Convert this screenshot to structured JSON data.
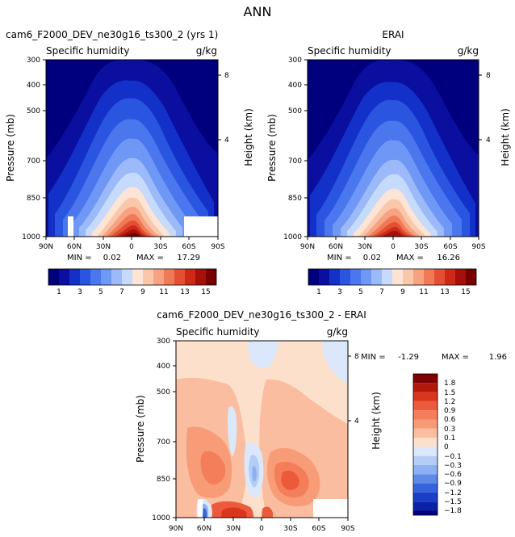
{
  "title": "ANN",
  "chart_data": [
    {
      "type": "heatmap",
      "panel": "model",
      "title": "cam6_F2000_DEV_ne30g16_ts300_2 (yrs 1)",
      "subtitle_left": "Specific humidity",
      "subtitle_right": "g/kg",
      "ylabel": "Pressure (mb)",
      "y2label": "Height (km)",
      "x_ticks": [
        "90N",
        "60N",
        "30N",
        "0",
        "30S",
        "60S",
        "90S"
      ],
      "y_ticks": [
        "300",
        "400",
        "500",
        "700",
        "850",
        "1000"
      ],
      "y_tick_values": [
        300,
        400,
        500,
        700,
        850,
        1000
      ],
      "y2_ticks": [
        "8",
        "4"
      ],
      "xlim": [
        90,
        -90
      ],
      "ylim": [
        1000,
        300
      ],
      "min_label": "MIN =",
      "min": "0.02",
      "max_label": "MAX =",
      "max": "17.29",
      "contour_levels": [
        1,
        2,
        3,
        4,
        5,
        6,
        7,
        8,
        9,
        10,
        11,
        12,
        13,
        14,
        15
      ],
      "colorbar_labels": [
        "1",
        "3",
        "5",
        "7",
        "9",
        "11",
        "13",
        "15"
      ],
      "colors": [
        "#00007f",
        "#0a0fa0",
        "#1330c8",
        "#2a55e0",
        "#4a76ee",
        "#6f98f6",
        "#9cbafa",
        "#c6dafc",
        "#fde4d4",
        "#fbc7aa",
        "#f7a280",
        "#f07a56",
        "#e44f33",
        "#cc2a17",
        "#a5100a",
        "#780000"
      ]
    },
    {
      "type": "heatmap",
      "panel": "obs",
      "title": "ERAI",
      "subtitle_left": "Specific humidity",
      "subtitle_right": "g/kg",
      "ylabel": "Pressure (mb)",
      "y2label": "Height (km)",
      "x_ticks": [
        "90N",
        "60N",
        "30N",
        "0",
        "30S",
        "60S",
        "90S"
      ],
      "y_ticks": [
        "300",
        "400",
        "500",
        "700",
        "850",
        "1000"
      ],
      "y_tick_values": [
        300,
        400,
        500,
        700,
        850,
        1000
      ],
      "y2_ticks": [
        "8",
        "4"
      ],
      "xlim": [
        90,
        -90
      ],
      "ylim": [
        1000,
        300
      ],
      "min_label": "MIN =",
      "min": "0.02",
      "max_label": "MAX =",
      "max": "16.26",
      "contour_levels": [
        1,
        2,
        3,
        4,
        5,
        6,
        7,
        8,
        9,
        10,
        11,
        12,
        13,
        14,
        15
      ],
      "colorbar_labels": [
        "1",
        "3",
        "5",
        "7",
        "9",
        "11",
        "13",
        "15"
      ],
      "colors": [
        "#00007f",
        "#0a0fa0",
        "#1330c8",
        "#2a55e0",
        "#4a76ee",
        "#6f98f6",
        "#9cbafa",
        "#c6dafc",
        "#fde4d4",
        "#fbc7aa",
        "#f7a280",
        "#f07a56",
        "#e44f33",
        "#cc2a17",
        "#a5100a",
        "#780000"
      ]
    },
    {
      "type": "heatmap",
      "panel": "difference",
      "title": "cam6_F2000_DEV_ne30g16_ts300_2 - ERAI",
      "subtitle_left": "Specific humidity",
      "subtitle_right": "g/kg",
      "ylabel": "Pressure (mb)",
      "y2label": "Height (km)",
      "x_ticks": [
        "90N",
        "60N",
        "30N",
        "0",
        "30S",
        "60S",
        "90S"
      ],
      "y_ticks": [
        "300",
        "400",
        "500",
        "700",
        "850",
        "1000"
      ],
      "y_tick_values": [
        300,
        400,
        500,
        700,
        850,
        1000
      ],
      "y2_ticks": [
        "8",
        "4"
      ],
      "xlim": [
        90,
        -90
      ],
      "ylim": [
        1000,
        300
      ],
      "min_label": "MIN =",
      "min": "-1.29",
      "max_label": "MAX =",
      "max": "1.96",
      "contour_levels": [
        -1.8,
        -1.5,
        -1.2,
        -0.9,
        -0.6,
        -0.3,
        -0.1,
        0,
        0.1,
        0.3,
        0.6,
        0.9,
        1.2,
        1.5,
        1.8
      ],
      "colorbar_labels": [
        "1.8",
        "1.5",
        "1.2",
        "0.9",
        "0.6",
        "0.3",
        "0.1",
        "0",
        "−0.1",
        "−0.3",
        "−0.6",
        "−0.9",
        "−1.2",
        "−1.5",
        "−1.8"
      ],
      "colors": [
        "#7f0000",
        "#b0190c",
        "#d9361e",
        "#ec5a3c",
        "#f47e5a",
        "#f89c78",
        "#fbbd9f",
        "#fde0cc",
        "#dbe8fb",
        "#b4cdf7",
        "#8cb0f1",
        "#5e8ae8",
        "#3563dc",
        "#1a3fc6",
        "#0c22a6",
        "#00007f"
      ]
    }
  ]
}
